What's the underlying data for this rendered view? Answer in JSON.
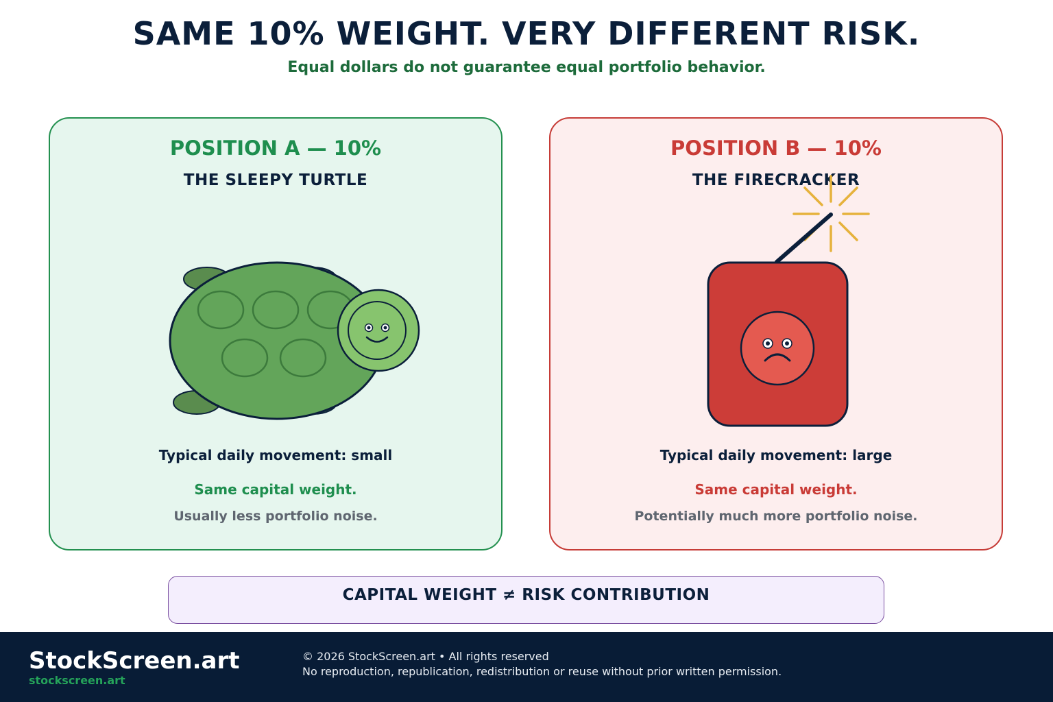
{
  "header": {
    "title": "SAME 10% WEIGHT. VERY DIFFERENT RISK.",
    "subtitle": "Equal dollars do not guarantee equal portfolio behavior."
  },
  "position_a": {
    "heading": "POSITION A — 10%",
    "name": "THE SLEEPY TURTLE",
    "movement": "Typical daily movement: small",
    "weight_note": "Same capital weight.",
    "noise_note": "Usually less portfolio noise.",
    "illustration": "turtle-icon",
    "accent_color": "#1e8e4e"
  },
  "position_b": {
    "heading": "POSITION B — 10%",
    "name": "THE FIRECRACKER",
    "movement": "Typical daily movement: large",
    "weight_note": "Same capital weight.",
    "noise_note": "Potentially much more portfolio noise.",
    "illustration": "firecracker-icon",
    "accent_color": "#c93b36"
  },
  "banner": {
    "text": "CAPITAL WEIGHT ≠ RISK CONTRIBUTION"
  },
  "footer": {
    "brand": "StockScreen.art",
    "brand_url": "stockscreen.art",
    "copyright": "© 2026 StockScreen.art • All rights reserved",
    "permission": "No reproduction, republication, redistribution or reuse without prior written permission."
  }
}
